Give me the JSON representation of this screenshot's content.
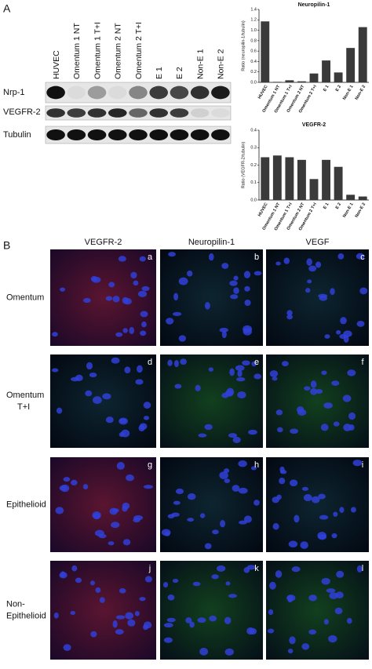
{
  "panel_a": {
    "label": "A",
    "blot": {
      "lanes": [
        "HUVEC",
        "Omentum 1 NT",
        "Omentum 1 T+I",
        "Omentum 2 NT",
        "Omentum 2 T+I",
        "E 1",
        "E 2",
        "Non-E 1",
        "Non-E 2"
      ],
      "rows": [
        "Nrp-1",
        "VEGFR-2",
        "Tubulin"
      ]
    }
  },
  "chart_data": [
    {
      "type": "bar",
      "title": "Neuropilin-1",
      "y_label": "Ratio (neuropilin-1/tubulin)",
      "categories": [
        "HUVEC",
        "Omentum 1 NT",
        "Omentum 1 T+I",
        "Omentum 2 NT",
        "Omentum 2 T+I",
        "E 1",
        "E 2",
        "Non-E 1",
        "Non-E 2"
      ],
      "values": [
        1.17,
        0.01,
        0.04,
        0.02,
        0.17,
        0.42,
        0.19,
        0.66,
        1.06
      ],
      "color": "#3a3a3a",
      "ylim": [
        0,
        1.4
      ],
      "yticks": [
        {
          "value": 0,
          "label": "0.0"
        },
        0.2,
        0.4,
        0.6,
        0.8,
        {
          "value": 1,
          "label": "1.0"
        },
        1.2,
        1.4
      ]
    },
    {
      "type": "bar",
      "title": "VEGFR-2",
      "y_label": "Ratio (VEGFR-2/tubulin)",
      "categories": [
        "HUVEC",
        "Omentum 1 NT",
        "Omentum 1 T+I",
        "Omentum 2 NT",
        "Omentum 2 T+I",
        "E 1",
        "E 2",
        "Non-E 1",
        "Non-E 2"
      ],
      "values": [
        0.245,
        0.255,
        0.245,
        0.23,
        0.12,
        0.23,
        0.19,
        0.03,
        0.02
      ],
      "color": "#3a3a3a",
      "ylim": [
        0,
        0.4
      ],
      "yticks": [
        {
          "value": 0,
          "label": "0.0"
        },
        0.1,
        0.2,
        0.3,
        0.4
      ]
    }
  ],
  "panel_b": {
    "label": "B",
    "columns": [
      "VEGFR-2",
      "Neuropilin-1",
      "VEGF"
    ],
    "rows": [
      [
        "Omentum"
      ],
      [
        "Omentum",
        "T+I"
      ],
      [
        "Epithelioid"
      ],
      [
        "Non-",
        "Epithelioid"
      ]
    ],
    "letters": [
      [
        "a",
        "b",
        "c"
      ],
      [
        "d",
        "e",
        "f"
      ],
      [
        "g",
        "h",
        "i"
      ],
      [
        "j",
        "k",
        "l"
      ]
    ]
  }
}
